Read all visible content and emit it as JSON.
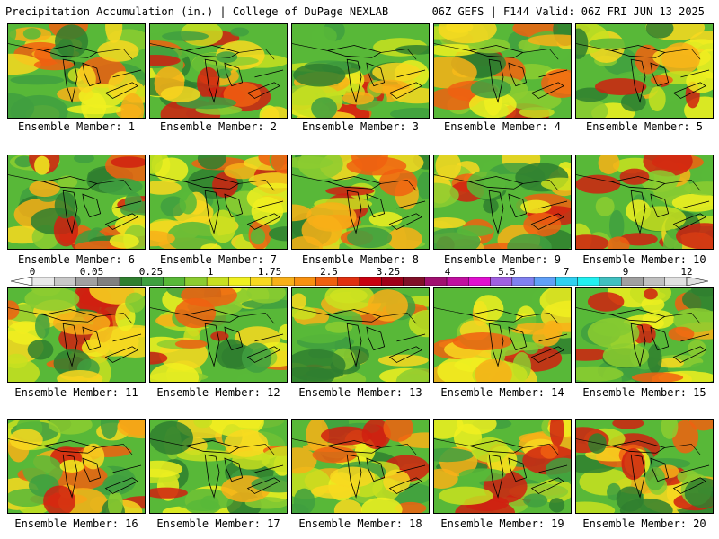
{
  "header": {
    "left_title": "Precipitation Accumulation (in.) | College of DuPage NEXLAB",
    "right_title": "06Z GEFS | F144 Valid: 06Z FRI JUN 13 2025"
  },
  "members": [
    {
      "label": "Ensemble Member: 1"
    },
    {
      "label": "Ensemble Member: 2"
    },
    {
      "label": "Ensemble Member: 3"
    },
    {
      "label": "Ensemble Member: 4"
    },
    {
      "label": "Ensemble Member: 5"
    },
    {
      "label": "Ensemble Member: 6"
    },
    {
      "label": "Ensemble Member: 7"
    },
    {
      "label": "Ensemble Member: 8"
    },
    {
      "label": "Ensemble Member: 9"
    },
    {
      "label": "Ensemble Member: 10"
    },
    {
      "label": "Ensemble Member: 11"
    },
    {
      "label": "Ensemble Member: 12"
    },
    {
      "label": "Ensemble Member: 13"
    },
    {
      "label": "Ensemble Member: 14"
    },
    {
      "label": "Ensemble Member: 15"
    },
    {
      "label": "Ensemble Member: 16"
    },
    {
      "label": "Ensemble Member: 17"
    },
    {
      "label": "Ensemble Member: 18"
    },
    {
      "label": "Ensemble Member: 19"
    },
    {
      "label": "Ensemble Member: 20"
    }
  ],
  "colorbar": {
    "labels": [
      "0",
      "0.05",
      "0.25",
      "1",
      "1.75",
      "2.5",
      "3.25",
      "4",
      "5.5",
      "7",
      "9",
      "12"
    ],
    "colors": [
      "#e8e8e8",
      "#c8c8c8",
      "#a0a0a0",
      "#808080",
      "#2f7f2f",
      "#3f9f3f",
      "#58b838",
      "#8ccc30",
      "#c8e020",
      "#f0f020",
      "#f8d820",
      "#f8b018",
      "#f89010",
      "#f06010",
      "#e03010",
      "#c80010",
      "#a00018",
      "#801028",
      "#a01070",
      "#c010a0",
      "#e010d0",
      "#a060e0",
      "#8080f0",
      "#60a0f8",
      "#30d0f0",
      "#20f0f0",
      "#40c0c0",
      "#a0a0a0",
      "#c0c0c0",
      "#e0e0e0"
    ]
  }
}
